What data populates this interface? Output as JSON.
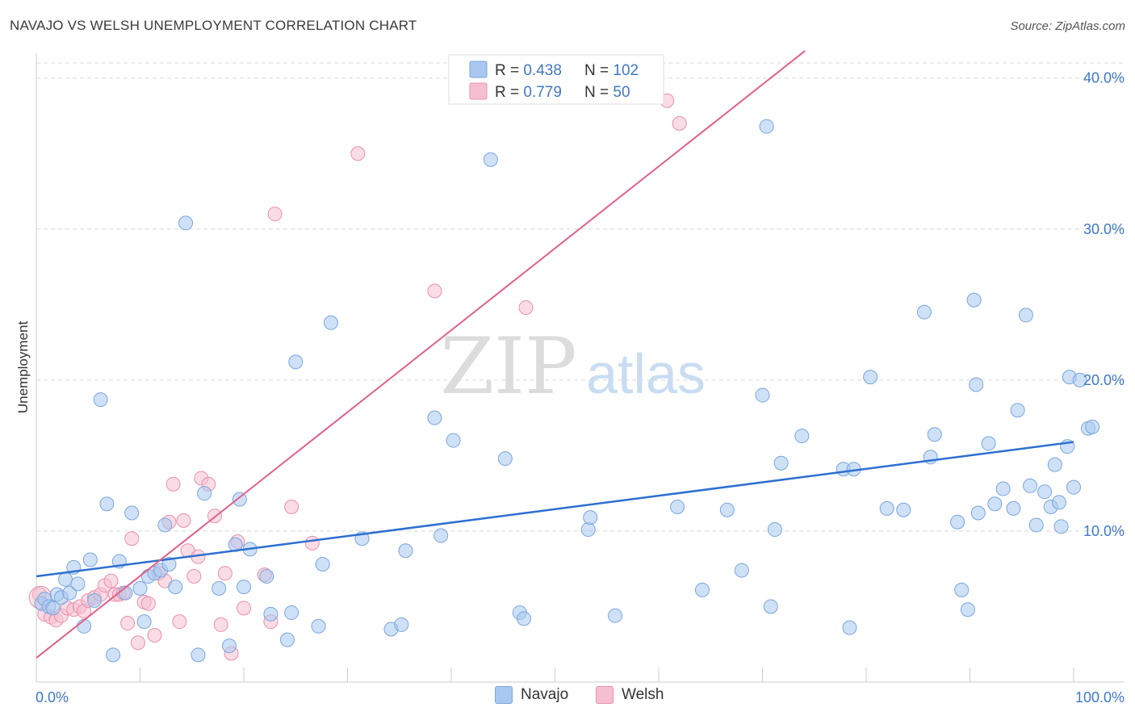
{
  "title": "NAVAJO VS WELSH UNEMPLOYMENT CORRELATION CHART",
  "source": "Source: ZipAtlas.com",
  "watermark": {
    "zip": "ZIP",
    "atlas": "atlas"
  },
  "colors": {
    "navajo_fill": "#a8c8f0",
    "navajo_stroke": "#7aa6dc",
    "navajo_line": "#2d6fd0",
    "welsh_fill": "#f6bfd0",
    "welsh_stroke": "#e890ad",
    "welsh_line": "#e0608a",
    "axis_label": "#3f78c8",
    "grid": "#d9d9d9"
  },
  "stats_legend": [
    {
      "series": "Navajo",
      "r_label": "R = ",
      "r_value": "0.438",
      "n_label": "N = ",
      "n_value": "102"
    },
    {
      "series": "Welsh",
      "r_label": "R = ",
      "r_value": "0.779",
      "n_label": "N = ",
      "n_value": " 50"
    }
  ],
  "chart_data": {
    "type": "scatter",
    "title": "NAVAJO VS WELSH UNEMPLOYMENT CORRELATION CHART",
    "xlabel": "",
    "ylabel": "Unemployment",
    "xlim": [
      0,
      100
    ],
    "ylim": [
      0,
      41
    ],
    "x_tick_labels": [
      "0.0%",
      "100.0%"
    ],
    "y_ticks": [
      10,
      20,
      30,
      40
    ],
    "y_tick_labels": [
      "10.0%",
      "20.0%",
      "30.0%",
      "40.0%"
    ],
    "grid": true,
    "legend_position": "bottom",
    "series": [
      {
        "name": "Navajo",
        "trend": {
          "x": [
            0,
            100
          ],
          "y": [
            7.0,
            15.9
          ]
        },
        "points": [
          [
            0.5,
            5.2
          ],
          [
            0.8,
            5.5
          ],
          [
            1.2,
            5.0
          ],
          [
            1.6,
            4.9
          ],
          [
            2.0,
            5.8
          ],
          [
            2.4,
            5.6
          ],
          [
            2.8,
            6.8
          ],
          [
            3.2,
            5.9
          ],
          [
            3.6,
            7.6
          ],
          [
            4.0,
            6.5
          ],
          [
            4.6,
            3.7
          ],
          [
            5.2,
            8.1
          ],
          [
            5.6,
            5.4
          ],
          [
            6.2,
            18.7
          ],
          [
            6.8,
            11.8
          ],
          [
            7.4,
            1.8
          ],
          [
            8.0,
            8.0
          ],
          [
            8.6,
            5.9
          ],
          [
            9.2,
            11.2
          ],
          [
            10.0,
            6.2
          ],
          [
            10.4,
            4.0
          ],
          [
            10.8,
            7.0
          ],
          [
            11.4,
            7.2
          ],
          [
            12.0,
            7.4
          ],
          [
            12.4,
            10.4
          ],
          [
            12.8,
            7.8
          ],
          [
            13.4,
            6.3
          ],
          [
            14.4,
            30.4
          ],
          [
            15.6,
            1.8
          ],
          [
            16.2,
            12.5
          ],
          [
            17.6,
            6.2
          ],
          [
            18.6,
            2.4
          ],
          [
            19.2,
            9.1
          ],
          [
            19.6,
            12.1
          ],
          [
            20.0,
            6.3
          ],
          [
            20.6,
            8.8
          ],
          [
            22.2,
            7.0
          ],
          [
            22.6,
            4.5
          ],
          [
            24.2,
            2.8
          ],
          [
            24.6,
            4.6
          ],
          [
            25.0,
            21.2
          ],
          [
            27.2,
            3.7
          ],
          [
            27.6,
            7.8
          ],
          [
            28.4,
            23.8
          ],
          [
            31.4,
            9.5
          ],
          [
            34.2,
            3.5
          ],
          [
            35.2,
            3.8
          ],
          [
            35.6,
            8.7
          ],
          [
            38.4,
            17.5
          ],
          [
            39.0,
            9.7
          ],
          [
            40.2,
            16.0
          ],
          [
            43.8,
            34.6
          ],
          [
            45.2,
            14.8
          ],
          [
            46.6,
            4.6
          ],
          [
            47.0,
            4.2
          ],
          [
            53.2,
            10.1
          ],
          [
            53.4,
            10.9
          ],
          [
            55.8,
            4.4
          ],
          [
            61.8,
            11.6
          ],
          [
            64.2,
            6.1
          ],
          [
            66.6,
            11.4
          ],
          [
            68.0,
            7.4
          ],
          [
            70.0,
            19.0
          ],
          [
            70.4,
            36.8
          ],
          [
            70.8,
            5.0
          ],
          [
            71.2,
            10.1
          ],
          [
            71.8,
            14.5
          ],
          [
            73.8,
            16.3
          ],
          [
            77.8,
            14.1
          ],
          [
            78.4,
            3.6
          ],
          [
            78.8,
            14.1
          ],
          [
            80.4,
            20.2
          ],
          [
            82.0,
            11.5
          ],
          [
            83.6,
            11.4
          ],
          [
            85.6,
            24.5
          ],
          [
            86.2,
            14.9
          ],
          [
            86.6,
            16.4
          ],
          [
            88.8,
            10.6
          ],
          [
            89.2,
            6.1
          ],
          [
            89.8,
            4.8
          ],
          [
            90.4,
            25.3
          ],
          [
            90.8,
            11.2
          ],
          [
            90.6,
            19.7
          ],
          [
            91.8,
            15.8
          ],
          [
            92.4,
            11.8
          ],
          [
            93.2,
            12.8
          ],
          [
            94.2,
            11.5
          ],
          [
            94.6,
            18.0
          ],
          [
            95.4,
            24.3
          ],
          [
            95.8,
            13.0
          ],
          [
            96.4,
            10.4
          ],
          [
            97.2,
            12.6
          ],
          [
            97.8,
            11.6
          ],
          [
            98.2,
            14.4
          ],
          [
            98.6,
            11.9
          ],
          [
            98.8,
            10.3
          ],
          [
            99.4,
            15.6
          ],
          [
            99.6,
            20.2
          ],
          [
            100.0,
            12.9
          ],
          [
            100.6,
            20.0
          ],
          [
            101.4,
            16.8
          ],
          [
            101.8,
            16.9
          ]
        ]
      },
      {
        "name": "Welsh",
        "trend": {
          "x": [
            0,
            74.1
          ],
          "y": [
            1.6,
            41.8
          ]
        },
        "points": [
          [
            0.3,
            5.8
          ],
          [
            0.8,
            4.5
          ],
          [
            1.4,
            4.3
          ],
          [
            1.9,
            4.1
          ],
          [
            2.4,
            4.4
          ],
          [
            3.0,
            4.9
          ],
          [
            3.6,
            4.8
          ],
          [
            4.2,
            5.0
          ],
          [
            4.6,
            4.7
          ],
          [
            5.0,
            5.4
          ],
          [
            5.6,
            5.6
          ],
          [
            6.2,
            5.8
          ],
          [
            6.6,
            6.4
          ],
          [
            7.2,
            6.7
          ],
          [
            7.6,
            5.8
          ],
          [
            8.0,
            5.8
          ],
          [
            8.4,
            5.9
          ],
          [
            8.8,
            3.9
          ],
          [
            9.2,
            9.5
          ],
          [
            9.8,
            2.6
          ],
          [
            10.4,
            5.3
          ],
          [
            10.8,
            5.2
          ],
          [
            11.4,
            3.1
          ],
          [
            11.8,
            7.2
          ],
          [
            12.4,
            6.7
          ],
          [
            12.8,
            10.6
          ],
          [
            13.2,
            13.1
          ],
          [
            13.8,
            4.0
          ],
          [
            14.2,
            10.7
          ],
          [
            14.6,
            8.7
          ],
          [
            15.2,
            7.0
          ],
          [
            15.6,
            8.3
          ],
          [
            15.9,
            13.5
          ],
          [
            16.6,
            13.1
          ],
          [
            17.2,
            11.0
          ],
          [
            17.8,
            3.8
          ],
          [
            18.2,
            7.2
          ],
          [
            18.8,
            1.9
          ],
          [
            19.4,
            9.3
          ],
          [
            20.0,
            4.9
          ],
          [
            22.0,
            7.1
          ],
          [
            22.6,
            4.0
          ],
          [
            23.0,
            31.0
          ],
          [
            24.6,
            11.6
          ],
          [
            26.6,
            9.2
          ],
          [
            31.0,
            35.0
          ],
          [
            38.4,
            25.9
          ],
          [
            47.2,
            24.8
          ],
          [
            60.8,
            38.5
          ],
          [
            62.0,
            37.0
          ]
        ]
      }
    ]
  },
  "bottom_legend": [
    "Navajo",
    "Welsh"
  ]
}
